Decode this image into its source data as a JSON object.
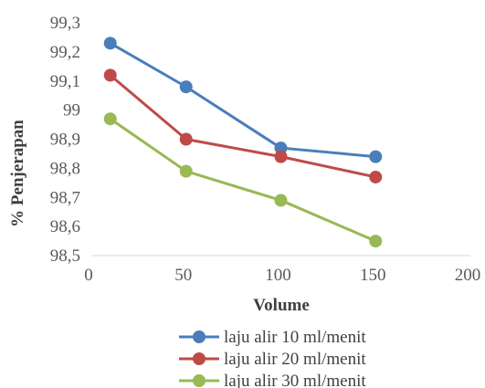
{
  "chart_data": {
    "type": "line",
    "title": "",
    "xlabel": "Volume",
    "ylabel": "% Penjerapan",
    "xlim": [
      0,
      200
    ],
    "ylim": [
      98.5,
      99.3
    ],
    "xticks": [
      "0",
      "50",
      "100",
      "150",
      "200"
    ],
    "yticks": [
      "98,5",
      "98,6",
      "98,7",
      "98,8",
      "98,9",
      "99",
      "99,1",
      "99,2",
      "99,3"
    ],
    "grid": false,
    "legend": "bottom",
    "x": [
      10,
      50,
      100,
      150
    ],
    "series": [
      {
        "name": "laju alir 10 ml/menit",
        "color": "#4a7ebb",
        "values": [
          99.23,
          99.08,
          98.87,
          98.84
        ]
      },
      {
        "name": "laju alir 20 ml/menit",
        "color": "#be4b48",
        "values": [
          99.12,
          98.9,
          98.84,
          98.77
        ]
      },
      {
        "name": "laju alir 30 ml/menit",
        "color": "#98b954",
        "values": [
          98.97,
          98.79,
          98.69,
          98.55
        ]
      }
    ]
  }
}
